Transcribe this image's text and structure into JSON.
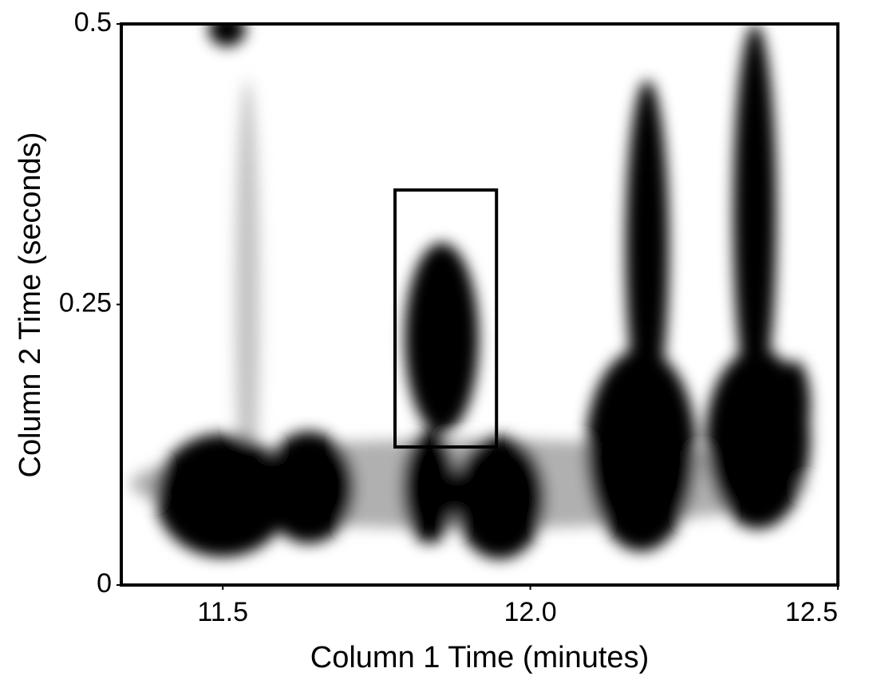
{
  "chart_data": {
    "type": "peak-map",
    "x_label": "Column 1 Time (minutes)",
    "y_label": "Column 2 Time (seconds)",
    "xlim": [
      11.335,
      12.5
    ],
    "ylim": [
      0,
      0.5
    ],
    "xticks": [
      11.5,
      {
        "value": 12,
        "label": "12.0"
      },
      12.5
    ],
    "yticks": [
      0,
      0.25,
      0.5
    ],
    "peaks": [
      {
        "x": 11.9,
        "y": 0.09,
        "width": 1.1,
        "height": 0.08,
        "color": "#b0b0b0"
      },
      {
        "x": 11.54,
        "y": 0.25,
        "width": 0.04,
        "height": 0.4,
        "color": "#c4c4c4"
      },
      {
        "x": 11.5,
        "y": 0.08,
        "width": 0.22,
        "height": 0.11,
        "color": "#000000"
      },
      {
        "x": 11.64,
        "y": 0.087,
        "width": 0.15,
        "height": 0.1,
        "color": "#000000"
      },
      {
        "x": 11.836,
        "y": 0.087,
        "width": 0.09,
        "height": 0.1,
        "color": "#000000"
      },
      {
        "x": 11.95,
        "y": 0.078,
        "width": 0.15,
        "height": 0.11,
        "color": "#000000"
      },
      {
        "x": 11.856,
        "y": 0.22,
        "width": 0.12,
        "height": 0.17,
        "color": "#000000"
      },
      {
        "x": 12.18,
        "y": 0.12,
        "width": 0.18,
        "height": 0.18,
        "color": "#000000"
      },
      {
        "x": 12.19,
        "y": 0.3,
        "width": 0.07,
        "height": 0.3,
        "color": "#000000"
      },
      {
        "x": 12.37,
        "y": 0.13,
        "width": 0.17,
        "height": 0.16,
        "color": "#000000"
      },
      {
        "x": 12.365,
        "y": 0.33,
        "width": 0.07,
        "height": 0.34,
        "color": "#000000"
      },
      {
        "x": 12.43,
        "y": 0.16,
        "width": 0.05,
        "height": 0.08,
        "color": "#000000"
      },
      {
        "x": 11.507,
        "y": 0.495,
        "width": 0.06,
        "height": 0.03,
        "color": "#000000"
      }
    ],
    "highlight": {
      "xlim": [
        11.78,
        11.945
      ],
      "ylim": [
        0.123,
        0.352
      ]
    }
  }
}
